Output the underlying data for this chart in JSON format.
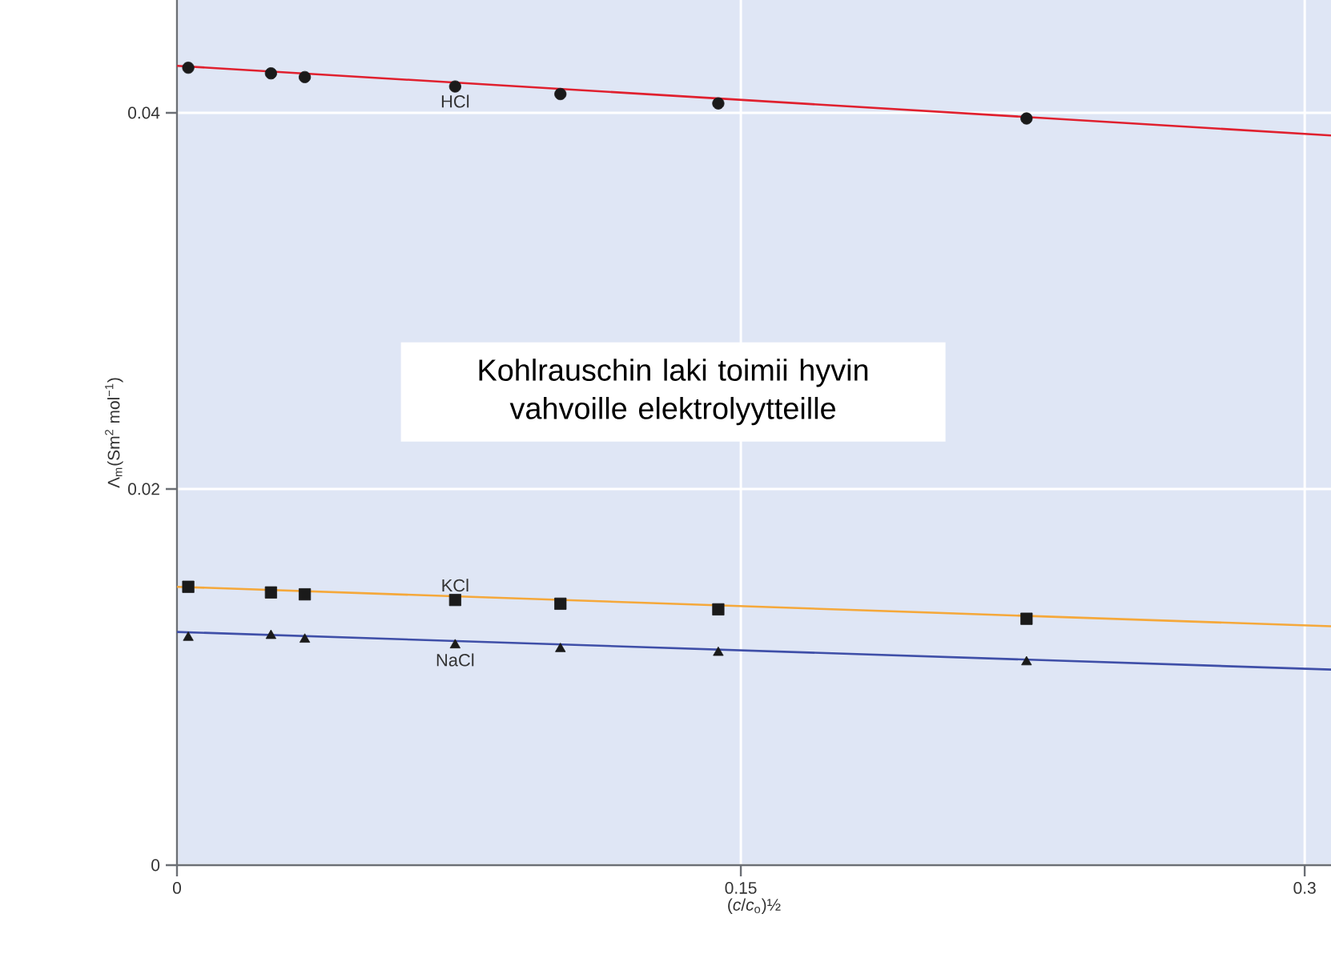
{
  "chart_data": {
    "type": "scatter",
    "xlabel": "(*c*/*c*$_{o}$)½",
    "ylabel": "Λ$_{m}$(Sm$^{2}$ mol$^{−1}$)",
    "xlim": [
      0,
      0.307
    ],
    "ylim": [
      0,
      0.046
    ],
    "xticks": [
      0,
      0.15,
      0.3
    ],
    "yticks": [
      0,
      0.02,
      0.04
    ],
    "grid": true,
    "annotations": [
      "Kohlrauschin laki toimii hyvin vahvoille elektrolyytteille"
    ],
    "series": [
      {
        "type": "line",
        "color": "#e0202e",
        "line_style": "solid",
        "marker": "none",
        "x": [
          0,
          0.307
        ],
        "values": [
          0.0425,
          0.0388
        ]
      },
      {
        "type": "line",
        "color": "#f5a83a",
        "line_style": "solid",
        "marker": "none",
        "x": [
          0,
          0.307
        ],
        "values": [
          0.0148,
          0.0127
        ]
      },
      {
        "type": "line",
        "color": "#3f4fa8",
        "line_style": "solid",
        "marker": "none",
        "x": [
          0,
          0.307
        ],
        "values": [
          0.0124,
          0.0104
        ]
      },
      {
        "name": "HCl",
        "color": "#1a1a1a",
        "marker": "circle",
        "x": [
          0.003,
          0.025,
          0.034,
          0.074,
          0.102,
          0.144,
          0.226
        ],
        "values": [
          0.0424,
          0.0421,
          0.0419,
          0.0414,
          0.041,
          0.0405,
          0.0397
        ]
      },
      {
        "name": "KCl",
        "color": "#1a1a1a",
        "marker": "square",
        "x": [
          0.003,
          0.025,
          0.034,
          0.074,
          0.102,
          0.144,
          0.226
        ],
        "values": [
          0.0148,
          0.0145,
          0.0144,
          0.0141,
          0.0139,
          0.0136,
          0.0131
        ]
      },
      {
        "name": "NaCl",
        "color": "#1a1a1a",
        "marker": "triangle",
        "x": [
          0.003,
          0.025,
          0.034,
          0.074,
          0.102,
          0.144,
          0.226
        ],
        "values": [
          0.0121,
          0.0122,
          0.012,
          0.0117,
          0.0115,
          0.0113,
          0.0108
        ]
      }
    ]
  }
}
